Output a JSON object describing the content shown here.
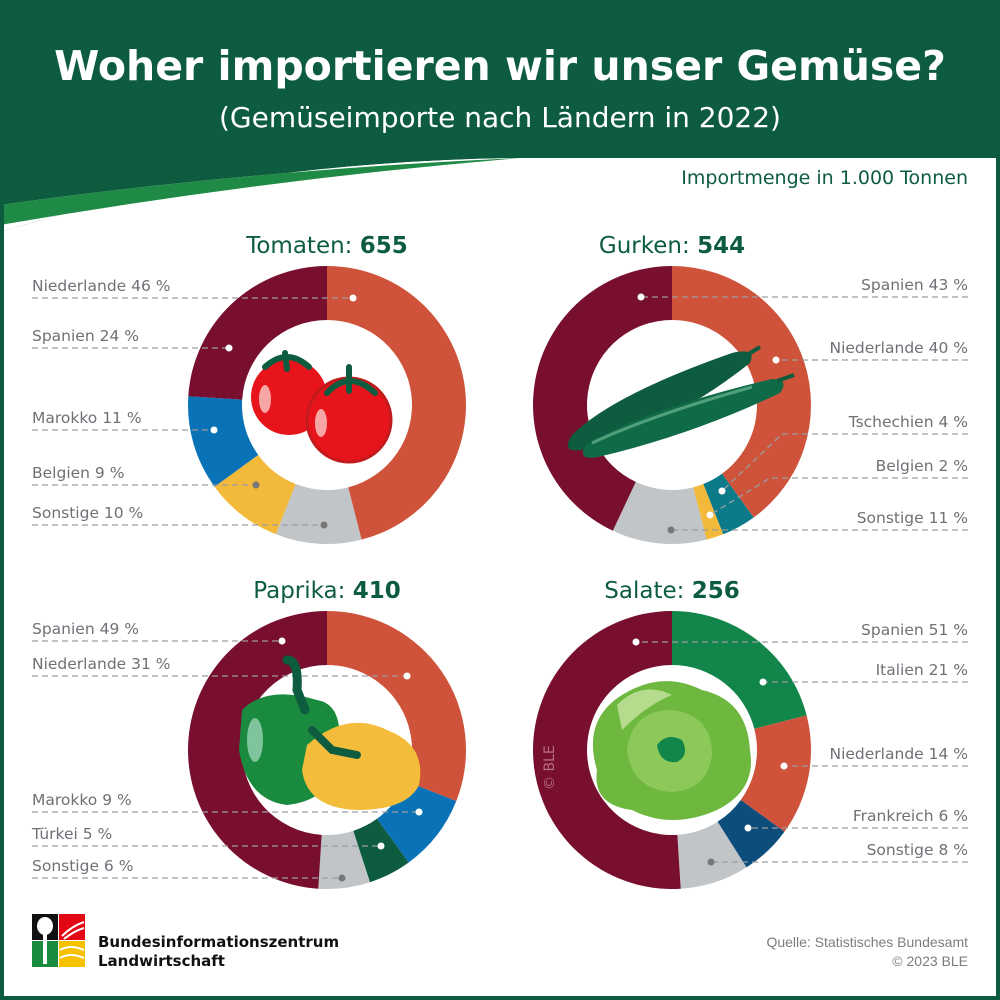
{
  "header": {
    "title": "Woher importieren wir unser Gemüse?",
    "subtitle": "(Gemüseimporte nach Ländern in 2022)",
    "unit_note": "Importmenge in 1.000 Tonnen"
  },
  "colors": {
    "header_green": "#0d5c3f",
    "Spanien": "#780f2e",
    "Niederlande": "#cf533a",
    "Marokko": "#0a73b8",
    "Belgien": "#f2b93b",
    "Sonstige": "#c1c5c8",
    "Tschechien": "#0b7b8a",
    "Türkei": "#0d5c3f",
    "Italien": "#12864a",
    "Frankreich": "#0c4d7c"
  },
  "chart_data": [
    {
      "type": "pie",
      "variant": "donut",
      "title": "Tomaten",
      "total": "655",
      "image": "tomato-illustration",
      "categories": [
        "Niederlande",
        "Sonstige",
        "Belgien",
        "Marokko",
        "Spanien"
      ],
      "values": [
        46,
        10,
        9,
        11,
        24
      ],
      "labels": [
        "Niederlande 46 %",
        "Sonstige 10 %",
        "Belgien 9 %",
        "Marokko 11 %",
        "Spanien 24 %"
      ],
      "label_side": "left"
    },
    {
      "type": "pie",
      "variant": "donut",
      "title": "Gurken",
      "total": "544",
      "image": "cucumber-illustration",
      "categories": [
        "Niederlande",
        "Tschechien",
        "Belgien",
        "Sonstige",
        "Spanien"
      ],
      "values": [
        40,
        4,
        2,
        11,
        43
      ],
      "labels": [
        "Niederlande 40 %",
        "Tschechien 4 %",
        "Belgien 2 %",
        "Sonstige 11 %",
        "Spanien 43 %"
      ],
      "label_side": "right"
    },
    {
      "type": "pie",
      "variant": "donut",
      "title": "Paprika",
      "total": "410",
      "image": "bell-pepper-illustration",
      "categories": [
        "Niederlande",
        "Marokko",
        "Türkei",
        "Sonstige",
        "Spanien"
      ],
      "values": [
        31,
        9,
        5,
        6,
        49
      ],
      "labels": [
        "Niederlande 31 %",
        "Marokko 9 %",
        "Türkei 5 %",
        "Sonstige 6 %",
        "Spanien 49 %"
      ],
      "label_side": "left"
    },
    {
      "type": "pie",
      "variant": "donut",
      "title": "Salate",
      "total": "256",
      "image": "lettuce-illustration",
      "categories": [
        "Italien",
        "Niederlande",
        "Frankreich",
        "Sonstige",
        "Spanien"
      ],
      "values": [
        21,
        14,
        6,
        8,
        51
      ],
      "labels": [
        "Italien 21 %",
        "Niederlande 14 %",
        "Frankreich 6 %",
        "Sonstige 8 %",
        "Spanien 51 %"
      ],
      "label_side": "right"
    }
  ],
  "watermark": "© BLE",
  "footer": {
    "org_line1": "Bundesinformationszentrum",
    "org_line2": "Landwirtschaft",
    "source": "Quelle: Statistisches Bundesamt",
    "copyright": "© 2023 BLE"
  }
}
